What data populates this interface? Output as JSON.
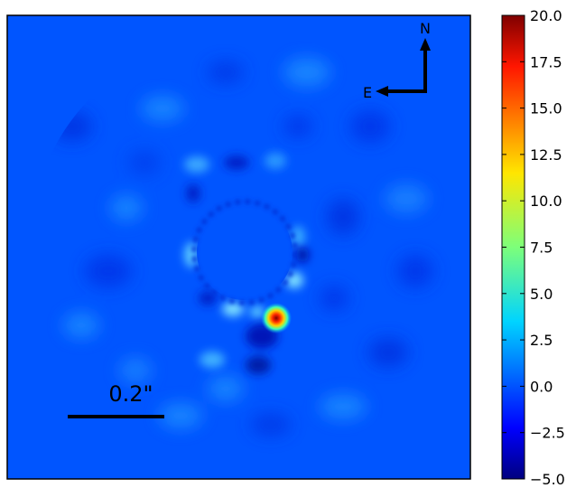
{
  "image": {
    "background_color": "#0055ff",
    "companion_color": "#ff2a00"
  },
  "compass": {
    "north_label": "N",
    "east_label": "E"
  },
  "scale_bar": {
    "label": "0.2\""
  },
  "colorbar": {
    "colormap": "jet",
    "range": [
      -5.0,
      20.0
    ],
    "ticks": [
      {
        "value": 20.0,
        "label": "20.0"
      },
      {
        "value": 17.5,
        "label": "17.5"
      },
      {
        "value": 15.0,
        "label": "15.0"
      },
      {
        "value": 12.5,
        "label": "12.5"
      },
      {
        "value": 10.0,
        "label": "10.0"
      },
      {
        "value": 7.5,
        "label": "7.5"
      },
      {
        "value": 5.0,
        "label": "5.0"
      },
      {
        "value": 2.5,
        "label": "2.5"
      },
      {
        "value": 0.0,
        "label": "0.0"
      },
      {
        "value": -2.5,
        "label": "−2.5"
      },
      {
        "value": -5.0,
        "label": "−5.0"
      }
    ]
  }
}
